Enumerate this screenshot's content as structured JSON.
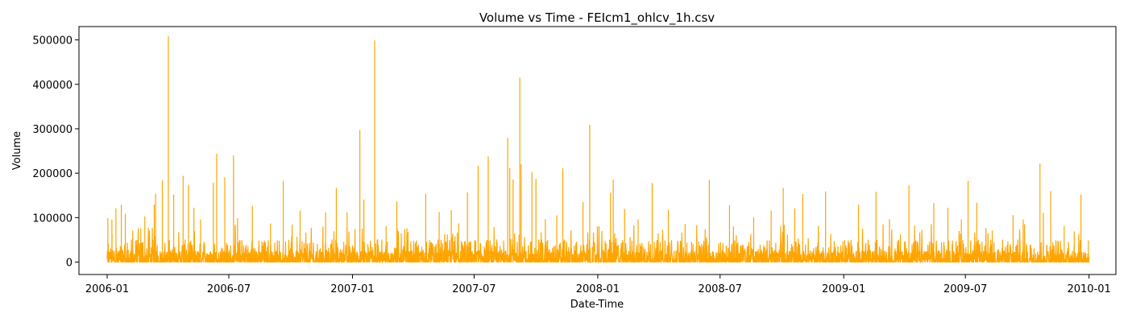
{
  "chart_data": {
    "type": "line",
    "title": "Volume vs Time - FEIcm1_ohlcv_1h.csv",
    "xlabel": "Date-Time",
    "ylabel": "Volume",
    "line_color": "#ffa500",
    "grid": false,
    "legend": "none",
    "xlim": [
      "2005-11-20",
      "2010-02-10"
    ],
    "ylim": [
      -28000,
      530000
    ],
    "x_ticks": [
      "2006-01",
      "2006-07",
      "2007-01",
      "2007-07",
      "2008-01",
      "2008-07",
      "2009-01",
      "2009-07",
      "2010-01"
    ],
    "y_ticks": [
      0,
      100000,
      200000,
      300000,
      400000,
      500000
    ],
    "y_tick_labels": [
      "0",
      "100000",
      "200000",
      "300000",
      "400000",
      "500000"
    ],
    "series": [
      {
        "x_start": "2006-01-01",
        "x_end": "2010-01-01",
        "peaks": [
          [
            "2006-01-02",
            98000
          ],
          [
            "2006-01-08",
            95000
          ],
          [
            "2006-01-14",
            120000
          ],
          [
            "2006-01-22",
            128000
          ],
          [
            "2006-01-28",
            108000
          ],
          [
            "2006-02-08",
            70000
          ],
          [
            "2006-02-20",
            75000
          ],
          [
            "2006-02-26",
            102000
          ],
          [
            "2006-03-12",
            128000
          ],
          [
            "2006-03-14",
            153000
          ],
          [
            "2006-03-24",
            183000
          ],
          [
            "2006-04-02",
            507000
          ],
          [
            "2006-04-10",
            151000
          ],
          [
            "2006-04-24",
            193000
          ],
          [
            "2006-05-02",
            173000
          ],
          [
            "2006-05-10",
            121000
          ],
          [
            "2006-05-20",
            95000
          ],
          [
            "2006-06-08",
            178000
          ],
          [
            "2006-06-13",
            243000
          ],
          [
            "2006-06-25",
            190000
          ],
          [
            "2006-07-08",
            239000
          ],
          [
            "2006-07-14",
            98000
          ],
          [
            "2006-08-05",
            126000
          ],
          [
            "2006-09-01",
            86000
          ],
          [
            "2006-09-20",
            182000
          ],
          [
            "2006-10-15",
            115000
          ],
          [
            "2006-11-22",
            111000
          ],
          [
            "2006-12-08",
            166000
          ],
          [
            "2006-12-24",
            111000
          ],
          [
            "2007-01-12",
            296000
          ],
          [
            "2007-01-18",
            140000
          ],
          [
            "2007-02-03",
            498000
          ],
          [
            "2007-02-20",
            80000
          ],
          [
            "2007-03-08",
            136000
          ],
          [
            "2007-04-20",
            153000
          ],
          [
            "2007-05-10",
            112000
          ],
          [
            "2007-05-28",
            116000
          ],
          [
            "2007-06-08",
            86000
          ],
          [
            "2007-06-21",
            156000
          ],
          [
            "2007-07-07",
            216000
          ],
          [
            "2007-07-22",
            237000
          ],
          [
            "2007-08-20",
            279000
          ],
          [
            "2007-08-23",
            211000
          ],
          [
            "2007-08-28",
            185000
          ],
          [
            "2007-09-07",
            414000
          ],
          [
            "2007-09-09",
            219000
          ],
          [
            "2007-09-25",
            202000
          ],
          [
            "2007-10-01",
            186000
          ],
          [
            "2007-10-15",
            96000
          ],
          [
            "2007-11-01",
            104000
          ],
          [
            "2007-11-10",
            210000
          ],
          [
            "2007-12-10",
            134000
          ],
          [
            "2007-12-20",
            308000
          ],
          [
            "2008-01-20",
            155000
          ],
          [
            "2008-01-24",
            185000
          ],
          [
            "2008-02-10",
            119000
          ],
          [
            "2008-03-01",
            95000
          ],
          [
            "2008-03-22",
            177000
          ],
          [
            "2008-04-15",
            117000
          ],
          [
            "2008-05-10",
            85000
          ],
          [
            "2008-06-15",
            184000
          ],
          [
            "2008-07-15",
            127000
          ],
          [
            "2008-08-20",
            100000
          ],
          [
            "2008-09-15",
            115000
          ],
          [
            "2008-10-03",
            166000
          ],
          [
            "2008-10-20",
            120000
          ],
          [
            "2008-11-01",
            152000
          ],
          [
            "2008-12-05",
            158000
          ],
          [
            "2009-01-05",
            15000
          ],
          [
            "2009-01-23",
            128000
          ],
          [
            "2009-02-18",
            157000
          ],
          [
            "2009-03-10",
            96000
          ],
          [
            "2009-04-08",
            172000
          ],
          [
            "2009-05-15",
            132000
          ],
          [
            "2009-06-05",
            121000
          ],
          [
            "2009-06-25",
            95000
          ],
          [
            "2009-07-05",
            182000
          ],
          [
            "2009-07-18",
            133000
          ],
          [
            "2009-08-10",
            70000
          ],
          [
            "2009-09-10",
            105000
          ],
          [
            "2009-09-25",
            95000
          ],
          [
            "2009-10-20",
            221000
          ],
          [
            "2009-10-25",
            110000
          ],
          [
            "2009-11-05",
            159000
          ],
          [
            "2009-11-25",
            80000
          ],
          [
            "2009-12-10",
            68000
          ],
          [
            "2009-12-20",
            151000
          ],
          [
            "2009-12-31",
            48000
          ]
        ]
      }
    ]
  }
}
